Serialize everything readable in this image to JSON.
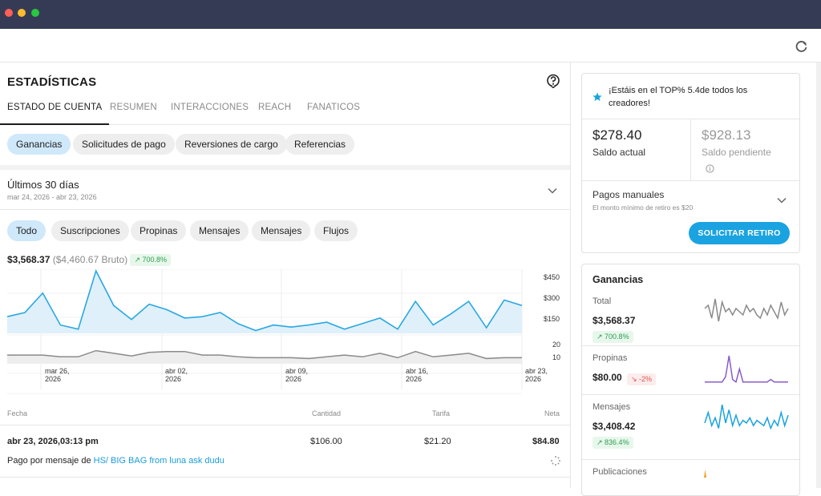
{
  "window": {
    "dot_colors": [
      "#ff5f57",
      "#febc2e",
      "#28c840"
    ]
  },
  "header": {
    "title": "ESTADÍSTICAS"
  },
  "tabs": [
    "ESTADO DE CUENTA",
    "RESUMEN",
    "INTERACCIONES",
    "REACH",
    "FANATICOS"
  ],
  "subtabs": [
    "Ganancias",
    "Solicitudes de pago",
    "Reversiones de cargo",
    "Referencias"
  ],
  "period": {
    "label": "Últimos 30 días",
    "range": "mar 24, 2026 - abr 23, 2026"
  },
  "filters": [
    "Todo",
    "Suscripciones",
    "Propinas",
    "Mensajes",
    "Mensajes",
    "Flujos"
  ],
  "totals": {
    "net": "$3,568.37",
    "gross": "($4,460.67 Bruto)",
    "change": "700.8%"
  },
  "chart_data": {
    "type": "area",
    "x_ticks": [
      "mar 26,\n2026",
      "abr 02,\n2026",
      "abr 09,\n2026",
      "abr 16,\n2026",
      "abr 23,\n2026"
    ],
    "y_ticks_top": [
      "$450",
      "$300",
      "$150"
    ],
    "y_ticks_bottom": [
      "20",
      "10"
    ],
    "accent": "#29a8e0",
    "secondary": "#8a8a8a",
    "series": [
      {
        "values": [
          120,
          150,
          290,
          60,
          30,
          450,
          200,
          100,
          210,
          170,
          110,
          120,
          150,
          70,
          20,
          60,
          45,
          60,
          80,
          30,
          70,
          110,
          30,
          230,
          60,
          140,
          230,
          40,
          240,
          200
        ]
      },
      {
        "values": [
          10,
          10,
          10,
          8,
          8,
          15,
          12,
          9,
          13,
          14,
          14,
          10,
          10,
          8,
          7,
          7,
          7,
          6,
          8,
          10,
          8,
          12,
          7,
          14,
          8,
          10,
          12,
          6,
          7,
          7
        ]
      }
    ]
  },
  "table": {
    "headers": [
      "Fecha",
      "Cantidad",
      "Tarifa",
      "Neta"
    ],
    "row": {
      "date": "abr 23, 2026,03:13 pm",
      "amount": "$106.00",
      "fee": "$21.20",
      "net": "$84.80"
    },
    "desc_prefix": "Pago por mensaje de ",
    "desc_link": "HS/ BIG BAG from luna ask dudu"
  },
  "balance": {
    "top_text": "¡Estáis en el TOP% 5.4de todos los creadores!",
    "current": "$278.40",
    "current_label": "Saldo actual",
    "pending": "$928.13",
    "pending_label": "Saldo pendiente",
    "manual_title": "Pagos manuales",
    "manual_note": "El monto mínimo de retiro es $20",
    "button": "SOLICITAR RETIRO"
  },
  "earnings": {
    "title": "Ganancias",
    "items": [
      {
        "label": "Total",
        "value": "$3,568.37",
        "change": "700.8%",
        "dir": "up",
        "color": "#8a8a8a",
        "spark": [
          6,
          7,
          3,
          9,
          2,
          8,
          5,
          6,
          4,
          6,
          5,
          4,
          7,
          5,
          6,
          4,
          3,
          6,
          4,
          7,
          5,
          3,
          8,
          4,
          6
        ]
      },
      {
        "label": "Propinas",
        "value": "$80.00",
        "change": "-2%",
        "dir": "down",
        "color": "#8a5cc7",
        "spark": [
          1,
          1,
          1,
          1,
          1,
          1,
          3,
          11,
          2,
          1,
          6,
          1,
          1,
          1,
          1,
          1,
          1,
          1,
          1,
          2,
          1,
          1,
          1,
          1,
          1
        ]
      },
      {
        "label": "Mensajes",
        "value": "$3,408.42",
        "change": "836.4%",
        "dir": "up",
        "color": "#1aa3e0",
        "spark": [
          4,
          8,
          3,
          6,
          2,
          11,
          4,
          9,
          3,
          7,
          3,
          5,
          4,
          6,
          3,
          5,
          4,
          3,
          6,
          2,
          5,
          3,
          8,
          3,
          7
        ]
      },
      {
        "label": "Publicaciones",
        "value": "",
        "change": "",
        "dir": "",
        "color": "#f0a020",
        "spark": []
      }
    ]
  }
}
